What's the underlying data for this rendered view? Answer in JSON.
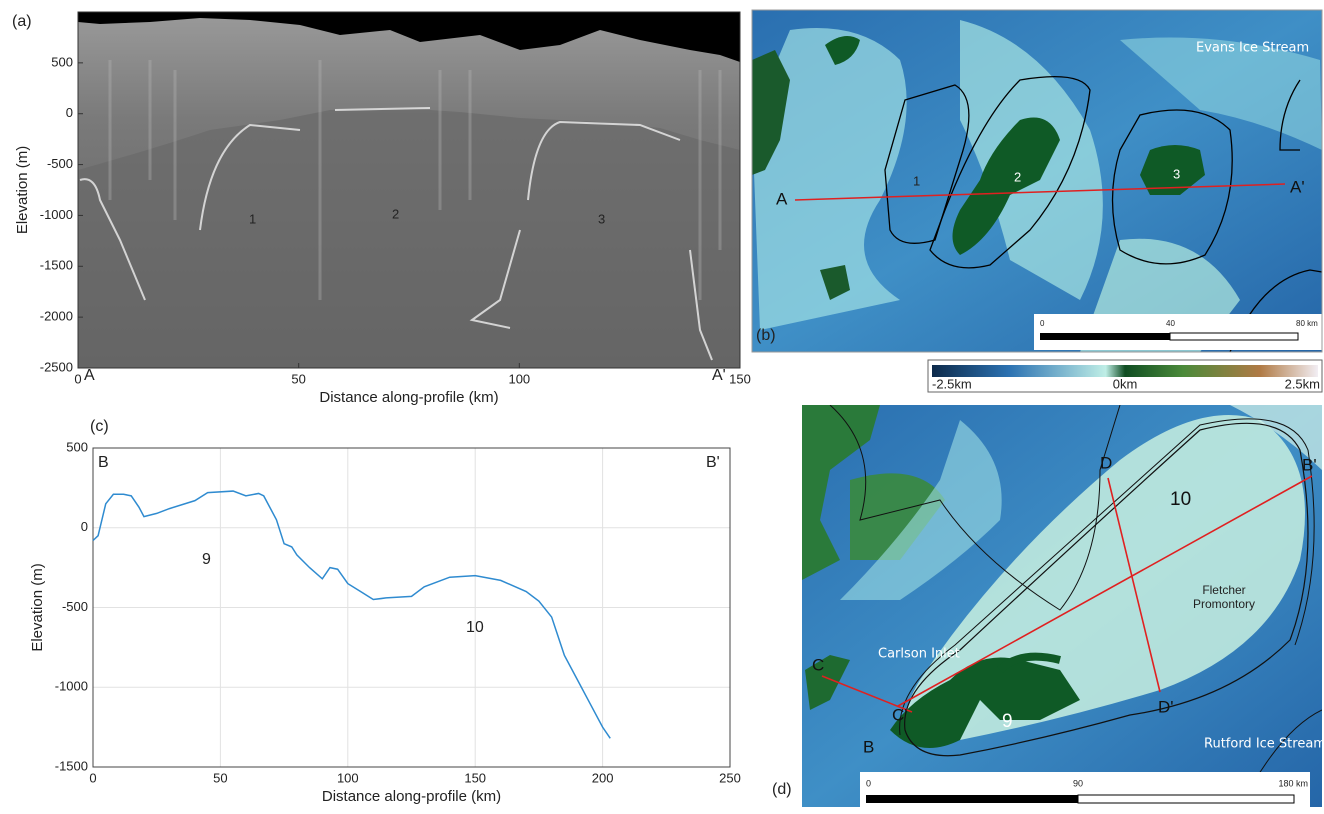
{
  "chart_data": [
    {
      "type": "radargram",
      "panel_label": "(a)",
      "xlabel": "Distance along-profile (km)",
      "ylabel": "Elevation (m)",
      "xlim": [
        0,
        150
      ],
      "xticks": [
        0,
        50,
        100,
        150
      ],
      "ylim": [
        -2500,
        1000
      ],
      "yticks": [
        -2500,
        -2000,
        -1500,
        -1000,
        -500,
        0,
        500
      ],
      "annotations": [
        "1",
        "2",
        "3",
        "A",
        "A'"
      ]
    },
    {
      "type": "line",
      "panel_label": "(c)",
      "xlabel": "Distance along-profile (km)",
      "ylabel": "Elevation (m)",
      "xlim": [
        0,
        250
      ],
      "xticks": [
        0,
        50,
        100,
        150,
        200,
        250
      ],
      "ylim": [
        -1500,
        500
      ],
      "yticks": [
        -1500,
        -1000,
        -500,
        0,
        500
      ],
      "grid": true,
      "x": [
        0,
        2,
        5,
        8,
        12,
        15,
        18,
        20,
        25,
        30,
        40,
        45,
        55,
        60,
        65,
        67,
        72,
        75,
        78,
        80,
        85,
        90,
        93,
        96,
        100,
        105,
        110,
        115,
        125,
        130,
        140,
        150,
        160,
        170,
        175,
        180,
        185,
        190,
        195,
        200,
        203
      ],
      "series": [
        {
          "color": "#2f8bd0",
          "values": [
            -80,
            -50,
            150,
            210,
            210,
            200,
            130,
            70,
            90,
            120,
            170,
            220,
            230,
            200,
            215,
            200,
            50,
            -100,
            -120,
            -170,
            -250,
            -320,
            -250,
            -260,
            -350,
            -400,
            -450,
            -440,
            -430,
            -370,
            -310,
            -300,
            -330,
            -400,
            -460,
            -560,
            -800,
            -950,
            -1100,
            -1250,
            -1320
          ]
        }
      ],
      "annotations": [
        "B",
        "B'",
        "9",
        "10"
      ]
    }
  ],
  "maps": {
    "b": {
      "panel_label": "(b)",
      "labels": [
        "Evans Ice Stream",
        "1",
        "2",
        "3",
        "A",
        "A'"
      ],
      "scale": [
        "0",
        "40",
        "80 km"
      ]
    },
    "colorbar": {
      "labels": [
        "-2.5km",
        "0km",
        "2.5km"
      ]
    },
    "d": {
      "panel_label": "(d)",
      "labels": [
        "Carlson Inlet",
        "Fletcher",
        "Promontory",
        "Rutford Ice Stream",
        "B",
        "B'",
        "C",
        "C'",
        "D",
        "D'",
        "9",
        "10"
      ],
      "scale": [
        "0",
        "90",
        "180 km"
      ]
    }
  }
}
